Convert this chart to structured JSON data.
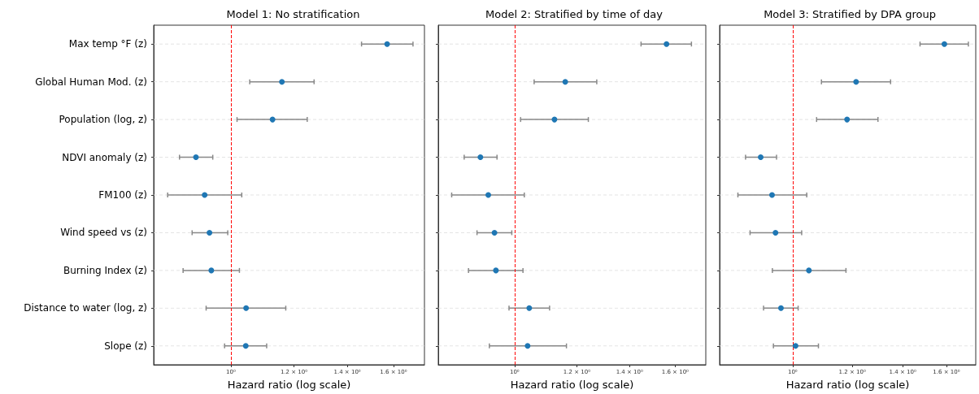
{
  "chart_data": [
    {
      "type": "scatter",
      "orientation": "horizontal",
      "title": "Model 1: No stratification",
      "xlabel": "Hazard ratio (log scale)",
      "categories": [
        "Max temp °F (z)",
        "Global Human Mod. (z)",
        "Population (log, z)",
        "NDVI anomaly (z)",
        "FM100 (z)",
        "Wind speed vs (z)",
        "Burning Index (z)",
        "Distance to water (log, z)",
        "Slope (z)"
      ],
      "values": [
        1.571,
        1.159,
        1.128,
        0.904,
        0.927,
        0.94,
        0.945,
        1.045,
        1.044
      ],
      "errors": [
        [
          1.459,
          1.693
        ],
        [
          1.056,
          1.272
        ],
        [
          1.018,
          1.247
        ],
        [
          0.862,
          0.949
        ],
        [
          0.833,
          1.032
        ],
        [
          0.894,
          0.991
        ],
        [
          0.871,
          1.025
        ],
        [
          0.931,
          1.172
        ],
        [
          0.982,
          1.109
        ]
      ],
      "color": "#1f77b4",
      "marker": "circle",
      "log": "x",
      "xlim": [
        0.8,
        1.75
      ],
      "xticks": [
        {
          "value": 1,
          "label": "10⁰"
        },
        {
          "value": 1.2,
          "label": "1.2 × 10⁰"
        },
        {
          "value": 1.4,
          "label": "1.4 × 10⁰"
        },
        {
          "value": 1.6,
          "label": "1.6 × 10⁰"
        }
      ],
      "grid": "y",
      "ref_lines": [
        {
          "axis": "x",
          "value": 1,
          "color": "#ff0000",
          "line_style": "dashed"
        }
      ]
    },
    {
      "type": "scatter",
      "orientation": "horizontal",
      "title": "Model 2: Stratified by time of day",
      "xlabel": "Hazard ratio (log scale)",
      "categories": [
        null,
        null,
        null,
        null,
        null,
        null,
        null,
        null,
        null
      ],
      "values": [
        1.56,
        1.16,
        1.124,
        0.905,
        0.926,
        0.943,
        0.947,
        1.044,
        1.039
      ],
      "errors": [
        [
          1.448,
          1.678
        ],
        [
          1.059,
          1.272
        ],
        [
          1.018,
          1.241
        ],
        [
          0.863,
          0.95
        ],
        [
          0.832,
          1.029
        ],
        [
          0.896,
          0.992
        ],
        [
          0.874,
          1.025
        ],
        [
          0.984,
          1.108
        ],
        [
          0.929,
          1.164
        ]
      ],
      "color": "#1f77b4",
      "marker": "circle",
      "log": "x",
      "xlim": [
        0.8,
        1.75
      ],
      "xticks": [
        {
          "value": 1,
          "label": "10⁰"
        },
        {
          "value": 1.2,
          "label": "1.2 × 10⁰"
        },
        {
          "value": 1.4,
          "label": "1.4 × 10⁰"
        },
        {
          "value": 1.6,
          "label": "1.6 × 10⁰"
        }
      ],
      "grid": "y",
      "ref_lines": [
        {
          "axis": "x",
          "value": 1,
          "color": "#ff0000",
          "line_style": "dashed"
        }
      ]
    },
    {
      "type": "scatter",
      "orientation": "horizontal",
      "title": "Model 3: Stratified by DPA group",
      "xlabel": "Hazard ratio (log scale)",
      "categories": [
        null,
        null,
        null,
        null,
        null,
        null,
        null,
        null,
        null
      ],
      "values": [
        1.59,
        1.214,
        1.181,
        0.907,
        0.939,
        0.949,
        1.051,
        0.965,
        1.009
      ],
      "errors": [
        [
          1.476,
          1.711
        ],
        [
          1.092,
          1.349
        ],
        [
          1.076,
          1.298
        ],
        [
          0.866,
          0.952
        ],
        [
          0.846,
          1.044
        ],
        [
          0.878,
          1.028
        ],
        [
          0.94,
          1.177
        ],
        [
          0.915,
          1.017
        ],
        [
          0.943,
          1.082
        ]
      ],
      "color": "#1f77b4",
      "marker": "circle",
      "log": "x",
      "xlim": [
        0.8,
        1.75
      ],
      "xticks": [
        {
          "value": 1,
          "label": "10⁰"
        },
        {
          "value": 1.2,
          "label": "1.2 × 10⁰"
        },
        {
          "value": 1.4,
          "label": "1.4 × 10⁰"
        },
        {
          "value": 1.6,
          "label": "1.6 × 10⁰"
        }
      ],
      "grid": "y",
      "ref_lines": [
        {
          "axis": "x",
          "value": 1,
          "color": "#ff0000",
          "line_style": "dashed"
        }
      ]
    }
  ]
}
